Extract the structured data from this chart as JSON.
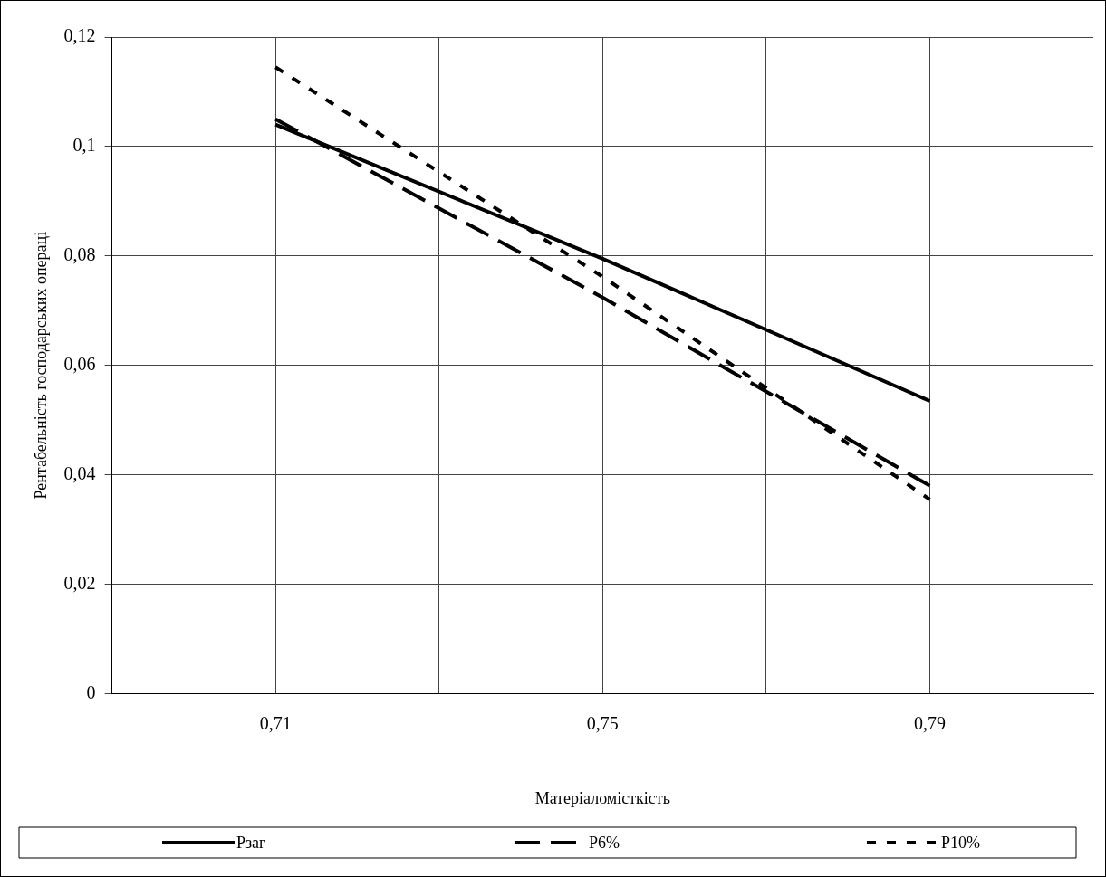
{
  "chart_data": {
    "type": "line",
    "xlabel": "Матеріаломісткість",
    "ylabel": "Рентабельність господарських операці",
    "x": [
      0.71,
      0.75,
      0.79
    ],
    "series": [
      {
        "name": "Pзаг",
        "color": "#000000",
        "line_style": "solid",
        "values": [
          0.104,
          0.0795,
          0.0535
        ]
      },
      {
        "name": "P6%",
        "color": "#000000",
        "line_style": "dashed",
        "values": [
          0.105,
          0.0724,
          0.038
        ]
      },
      {
        "name": "P10%",
        "color": "#000000",
        "line_style": "dotted",
        "values": [
          0.1145,
          0.0762,
          0.0355
        ]
      }
    ],
    "xlim": [
      0.69,
      0.81
    ],
    "xticks": [
      {
        "value": 0.71,
        "label": "0,71"
      },
      {
        "value": 0.73,
        "label": null
      },
      {
        "value": 0.75,
        "label": "0,75"
      },
      {
        "value": 0.77,
        "label": null
      },
      {
        "value": 0.79,
        "label": "0,79"
      }
    ],
    "ylim": [
      0,
      0.12
    ],
    "yticks": [
      {
        "value": 0,
        "label": "0"
      },
      {
        "value": 0.02,
        "label": "0,02"
      },
      {
        "value": 0.04,
        "label": "0,04"
      },
      {
        "value": 0.06,
        "label": "0,06"
      },
      {
        "value": 0.08,
        "label": "0,08"
      },
      {
        "value": 0.1,
        "label": "0,1"
      },
      {
        "value": 0.12,
        "label": "0,12"
      }
    ],
    "grid": true,
    "legend": "bottom",
    "marker": "none"
  }
}
